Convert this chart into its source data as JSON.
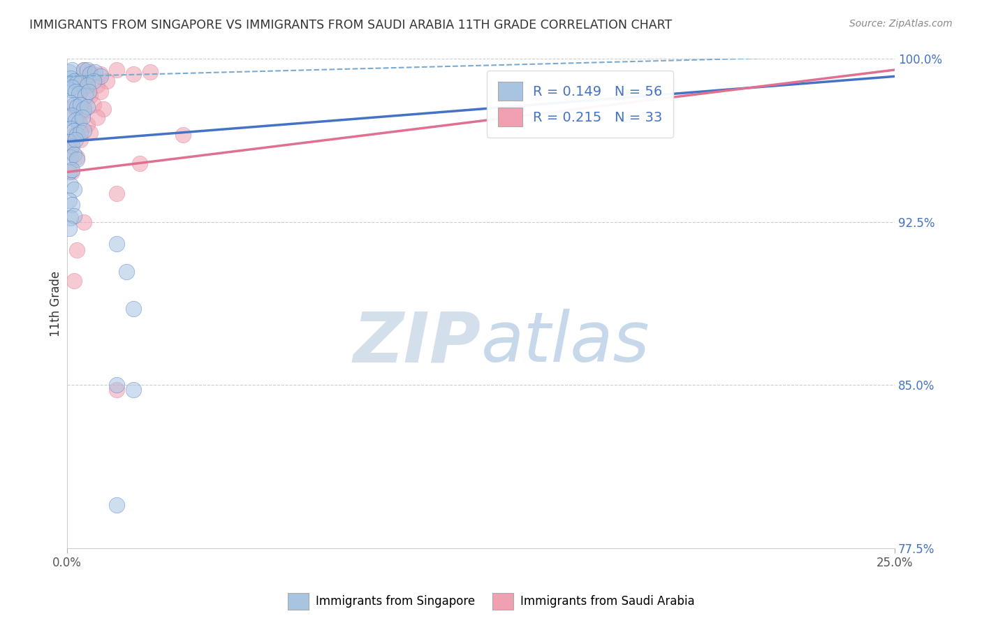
{
  "title": "IMMIGRANTS FROM SINGAPORE VS IMMIGRANTS FROM SAUDI ARABIA 11TH GRADE CORRELATION CHART",
  "source": "Source: ZipAtlas.com",
  "ylabel": "11th Grade",
  "legend_labels": [
    "Immigrants from Singapore",
    "Immigrants from Saudi Arabia"
  ],
  "R_singapore": 0.149,
  "N_singapore": 56,
  "R_saudi": 0.215,
  "N_saudi": 33,
  "xlim": [
    0.0,
    25.0
  ],
  "ylim": [
    77.5,
    100.0
  ],
  "xticks": [
    0.0,
    25.0
  ],
  "xtick_labels": [
    "0.0%",
    "25.0%"
  ],
  "yticks": [
    77.5,
    85.0,
    92.5,
    100.0
  ],
  "ytick_labels": [
    "77.5%",
    "85.0%",
    "92.5%",
    "100.0%"
  ],
  "color_singapore": "#a8c4e0",
  "color_saudi": "#f0a0b0",
  "trendline_singapore": "#4472c4",
  "trendline_saudi": "#e07090",
  "trendline_dashed_color": "#7aaad0",
  "watermark_zip": "ZIP",
  "watermark_atlas": "atlas",
  "watermark_color_zip": "#d0dcea",
  "watermark_color_atlas": "#c0d4e8",
  "sg_trend": [
    0.0,
    96.2,
    25.0,
    99.2
  ],
  "sa_trend": [
    0.0,
    94.8,
    25.0,
    99.5
  ],
  "sg_dash": [
    0.0,
    99.2,
    25.0,
    100.2
  ],
  "singapore_points": [
    [
      0.05,
      99.4
    ],
    [
      0.15,
      99.5
    ],
    [
      0.5,
      99.5
    ],
    [
      0.6,
      99.5
    ],
    [
      0.7,
      99.3
    ],
    [
      0.85,
      99.4
    ],
    [
      1.0,
      99.2
    ],
    [
      0.1,
      99.1
    ],
    [
      0.2,
      99.0
    ],
    [
      0.3,
      98.9
    ],
    [
      0.4,
      98.9
    ],
    [
      0.6,
      98.8
    ],
    [
      0.8,
      99.0
    ],
    [
      0.05,
      98.6
    ],
    [
      0.15,
      98.7
    ],
    [
      0.25,
      98.5
    ],
    [
      0.35,
      98.4
    ],
    [
      0.55,
      98.3
    ],
    [
      0.65,
      98.5
    ],
    [
      0.1,
      98.0
    ],
    [
      0.2,
      97.9
    ],
    [
      0.3,
      97.8
    ],
    [
      0.4,
      97.9
    ],
    [
      0.5,
      97.7
    ],
    [
      0.6,
      97.8
    ],
    [
      0.05,
      97.3
    ],
    [
      0.15,
      97.4
    ],
    [
      0.25,
      97.2
    ],
    [
      0.35,
      97.1
    ],
    [
      0.45,
      97.3
    ],
    [
      0.1,
      96.8
    ],
    [
      0.2,
      96.7
    ],
    [
      0.3,
      96.5
    ],
    [
      0.4,
      96.6
    ],
    [
      0.5,
      96.7
    ],
    [
      0.05,
      96.2
    ],
    [
      0.15,
      96.0
    ],
    [
      0.25,
      96.3
    ],
    [
      0.1,
      95.5
    ],
    [
      0.2,
      95.6
    ],
    [
      0.3,
      95.4
    ],
    [
      0.05,
      94.8
    ],
    [
      0.15,
      94.9
    ],
    [
      0.1,
      94.2
    ],
    [
      0.2,
      94.0
    ],
    [
      0.05,
      93.5
    ],
    [
      0.15,
      93.3
    ],
    [
      0.1,
      92.7
    ],
    [
      0.2,
      92.8
    ],
    [
      0.05,
      92.2
    ],
    [
      1.5,
      91.5
    ],
    [
      1.8,
      90.2
    ],
    [
      2.0,
      88.5
    ],
    [
      1.5,
      85.0
    ],
    [
      2.0,
      84.8
    ],
    [
      1.5,
      79.5
    ]
  ],
  "saudi_points": [
    [
      0.5,
      99.5
    ],
    [
      0.7,
      99.4
    ],
    [
      1.0,
      99.3
    ],
    [
      1.5,
      99.5
    ],
    [
      2.0,
      99.3
    ],
    [
      2.5,
      99.4
    ],
    [
      0.3,
      99.0
    ],
    [
      0.6,
      98.9
    ],
    [
      0.9,
      98.8
    ],
    [
      1.2,
      99.0
    ],
    [
      0.4,
      98.5
    ],
    [
      0.7,
      98.3
    ],
    [
      1.0,
      98.5
    ],
    [
      0.2,
      97.8
    ],
    [
      0.5,
      97.6
    ],
    [
      0.8,
      97.9
    ],
    [
      1.1,
      97.7
    ],
    [
      0.3,
      97.2
    ],
    [
      0.6,
      97.0
    ],
    [
      0.9,
      97.3
    ],
    [
      0.2,
      96.5
    ],
    [
      0.4,
      96.3
    ],
    [
      0.7,
      96.6
    ],
    [
      0.1,
      95.8
    ],
    [
      0.3,
      95.5
    ],
    [
      0.15,
      94.8
    ],
    [
      3.5,
      96.5
    ],
    [
      2.2,
      95.2
    ],
    [
      1.5,
      93.8
    ],
    [
      0.5,
      92.5
    ],
    [
      0.3,
      91.2
    ],
    [
      0.2,
      89.8
    ],
    [
      1.5,
      84.8
    ]
  ]
}
